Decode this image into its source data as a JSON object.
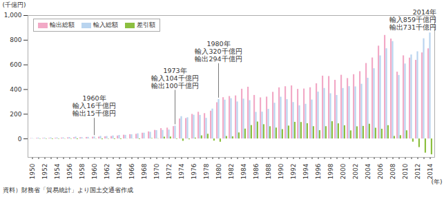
{
  "chart_data": {
    "type": "bar",
    "caption": "資料）財務省「貿易統計」より国土交通省作成",
    "x_label": "(年)",
    "y_label": "(千億円)",
    "categories": [
      "1950",
      null,
      "1952",
      null,
      "1954",
      null,
      "1956",
      null,
      "1958",
      null,
      "1960",
      null,
      "1962",
      null,
      "1964",
      null,
      "1966",
      null,
      "1968",
      null,
      "1970",
      null,
      "1972",
      null,
      "1974",
      null,
      "1976",
      null,
      "1978",
      null,
      "1980",
      null,
      "1982",
      null,
      "1984",
      null,
      "1986",
      null,
      "1988",
      null,
      "1990",
      null,
      "1992",
      null,
      "1994",
      null,
      "1996",
      null,
      "1998",
      null,
      "2000",
      null,
      "2002",
      null,
      "2004",
      null,
      "2006",
      null,
      "2008",
      null,
      "2010",
      null,
      "2012",
      null,
      "2014"
    ],
    "series": [
      {
        "name": "輸出総額",
        "color": "#f2a9c6",
        "values": [
          3,
          4.9,
          4.6,
          4.6,
          5.9,
          7.2,
          9,
          10.3,
          10.3,
          12.4,
          14.6,
          15.2,
          17.9,
          19.8,
          24,
          30.4,
          35.1,
          37.6,
          46.7,
          57.6,
          69.5,
          83.9,
          88.1,
          100.3,
          162.1,
          165.5,
          199.3,
          216.5,
          205.6,
          225.3,
          293.8,
          334.7,
          344.3,
          349.1,
          403.3,
          419.6,
          352.9,
          333.2,
          339.4,
          378.2,
          414.6,
          423.6,
          430.1,
          402,
          405,
          415.3,
          447.3,
          509.4,
          506.5,
          475.5,
          516.5,
          489.8,
          521.1,
          545.5,
          611.7,
          656.6,
          752.5,
          839.3,
          810.2,
          541.7,
          674,
          655.5,
          637.5,
          697.7,
          730.9
        ]
      },
      {
        "name": "輸入総額",
        "color": "#b9d4ef",
        "values": [
          3.5,
          7.3,
          7.3,
          8.7,
          8.6,
          8.9,
          11.6,
          15.4,
          10.9,
          13,
          16.1,
          21,
          20.2,
          24.5,
          28.7,
          29.4,
          34.2,
          42,
          46.9,
          54.2,
          68,
          69.1,
          72.3,
          104,
          180.8,
          171.7,
          192.3,
          191.3,
          167.3,
          242.5,
          319.9,
          314.6,
          326.6,
          300.1,
          323.2,
          310.8,
          215.5,
          217.4,
          240.1,
          289.8,
          338.6,
          319,
          295.3,
          268.3,
          281,
          315.5,
          379.9,
          409.6,
          366.5,
          352.7,
          409.4,
          424.2,
          422.3,
          443.6,
          492.2,
          569.5,
          673.4,
          731.4,
          789.5,
          515,
          607.7,
          681.1,
          706.9,
          812.4,
          859.1
        ]
      },
      {
        "name": "差引額",
        "color": "#8cbf3f",
        "values": [
          -0.5,
          -2.4,
          -2.7,
          -4.1,
          -2.7,
          -1.7,
          -2.6,
          -5.1,
          -0.6,
          -0.6,
          -1.5,
          -5.8,
          -2.3,
          -4.7,
          -4.7,
          1,
          0.9,
          -4.4,
          -0.2,
          3.4,
          1.5,
          14.8,
          15.8,
          -3.7,
          -18.7,
          -6.2,
          7,
          25.2,
          38.3,
          -17.2,
          -26.1,
          20.1,
          17.7,
          49,
          80.1,
          108.8,
          137.4,
          115.8,
          99.3,
          88.4,
          76,
          104.6,
          134.8,
          133.7,
          124,
          99.8,
          67.4,
          99.8,
          140,
          122.8,
          107.1,
          65.6,
          98.8,
          101.9,
          119.5,
          87.1,
          79.1,
          107.9,
          20.7,
          26.7,
          66.3,
          -25.6,
          -69.4,
          -114.7,
          -128.2
        ]
      }
    ],
    "ylim": [
      -150,
      1000
    ],
    "yticks": [
      0,
      200,
      400,
      600,
      800,
      {
        "value": 1000,
        "label": "1,000"
      }
    ],
    "grid": false,
    "legend": "top-left",
    "annotations": [
      {
        "x_index": 10,
        "text": [
          "1960年",
          "輸入16千億円",
          "輸出15千億円"
        ]
      },
      {
        "x_index": 23,
        "text": [
          "1973年",
          "輸入104千億円",
          "輸出100千億円"
        ]
      },
      {
        "x_index": 30,
        "text": [
          "1980年",
          "輸入320千億円",
          "輸出294千億円"
        ]
      },
      {
        "x_index": 64,
        "text": [
          "2014年",
          "輸入859千億円",
          "輸出731千億円"
        ]
      }
    ]
  }
}
